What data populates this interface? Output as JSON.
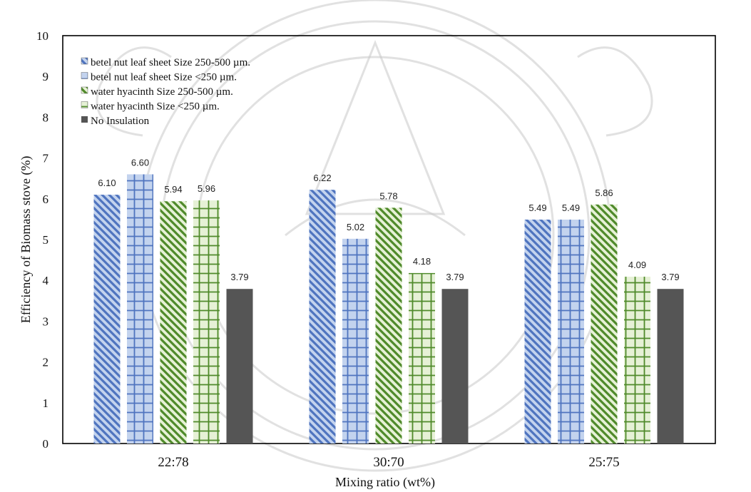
{
  "chart_data": {
    "type": "bar",
    "categories": [
      "22:78",
      "30:70",
      "25:75"
    ],
    "series": [
      {
        "name": "betel nut leaf sheet  Size 250-500 µm.",
        "values": [
          6.1,
          6.22,
          5.49
        ]
      },
      {
        "name": "betel nut leaf sheet  Size <250 µm.",
        "values": [
          6.6,
          5.02,
          5.49
        ]
      },
      {
        "name": "water hyacinth  Size 250-500 µm.",
        "values": [
          5.94,
          5.78,
          5.86
        ]
      },
      {
        "name": "water hyacinth  Size <250 µm.",
        "values": [
          5.96,
          4.18,
          4.09
        ]
      },
      {
        "name": "No Insulation",
        "values": [
          3.79,
          3.79,
          3.79
        ]
      }
    ],
    "data_labels": [
      [
        "6.10",
        "6.60",
        "5.94",
        "5.96",
        "3.79"
      ],
      [
        "6.22",
        "5.02",
        "5.78",
        "4.18",
        "3.79"
      ],
      [
        "5.49",
        "5.49",
        "5.86",
        "4.09",
        "3.79"
      ]
    ],
    "xlabel": "Mixing  ratio  (wt%)",
    "ylabel": "Efficiency of Biomass stove (%)",
    "ylim": [
      0,
      10
    ],
    "yticks": [
      "0",
      "1",
      "2",
      "3",
      "4",
      "5",
      "6",
      "7",
      "8",
      "9",
      "10"
    ],
    "grid": false,
    "legend_position": "top-left",
    "colors": {
      "blue_fill": "#c3d3ee",
      "blue_pattern": "#4f74bf",
      "green_fill": "#e6f1d6",
      "green_pattern": "#4f8a2a",
      "no_insulation": "#555555"
    }
  }
}
